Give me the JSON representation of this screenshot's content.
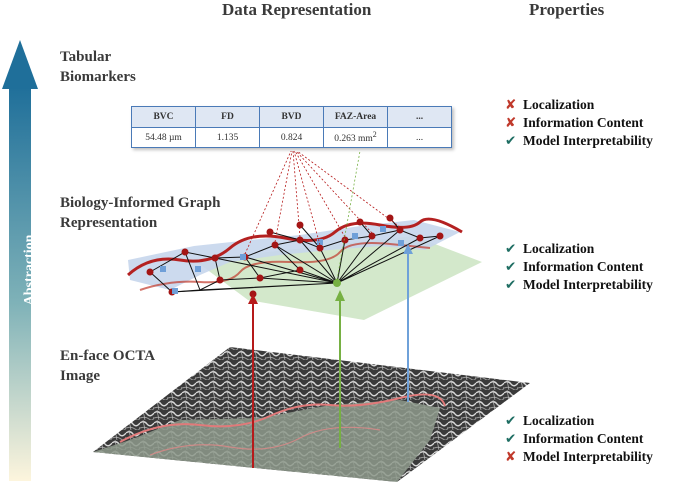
{
  "headers": {
    "data_representation": "Data Representation",
    "properties": "Properties"
  },
  "abstraction_label": "Abstraction",
  "levels": {
    "tabular": {
      "title_line1": "Tabular",
      "title_line2": "Biomarkers"
    },
    "graph": {
      "title_line1": "Biology-Informed Graph",
      "title_line2": "Representation"
    },
    "image": {
      "title_line1": "En-face OCTA",
      "title_line2": "Image"
    }
  },
  "table": {
    "headers": [
      "BVC",
      "FD",
      "BVD",
      "FAZ-Area",
      "..."
    ],
    "values": [
      "54.48 µm",
      "1.135",
      "0.824",
      "0.263 mm",
      "..."
    ],
    "faz_area_superscript": "2"
  },
  "properties": {
    "tabular": [
      {
        "mark": "cross",
        "label": "Localization"
      },
      {
        "mark": "cross",
        "label": "Information Content"
      },
      {
        "mark": "check",
        "label": "Model Interpretability"
      }
    ],
    "graph": [
      {
        "mark": "check",
        "label": "Localization"
      },
      {
        "mark": "check",
        "label": "Information Content"
      },
      {
        "mark": "check",
        "label": "Model Interpretability"
      }
    ],
    "image": [
      {
        "mark": "check",
        "label": "Localization"
      },
      {
        "mark": "check",
        "label": "Information Content"
      },
      {
        "mark": "cross",
        "label": "Model Interpretability"
      }
    ]
  },
  "marks": {
    "cross": "✘",
    "check": "✔"
  },
  "colors": {
    "abstraction_top": "#1f6f9a",
    "abstraction_bottom": "#fdf5dd",
    "red_vessel": "#b42121",
    "node_red": "#a31515",
    "node_blue": "#6f9fd8",
    "graph_plane": "#d3e8cb",
    "arrow_red": "#b61a1a",
    "arrow_green": "#76b043",
    "arrow_blue": "#6fa1d9",
    "check": "#1f6e63",
    "cross": "#c0392b"
  }
}
